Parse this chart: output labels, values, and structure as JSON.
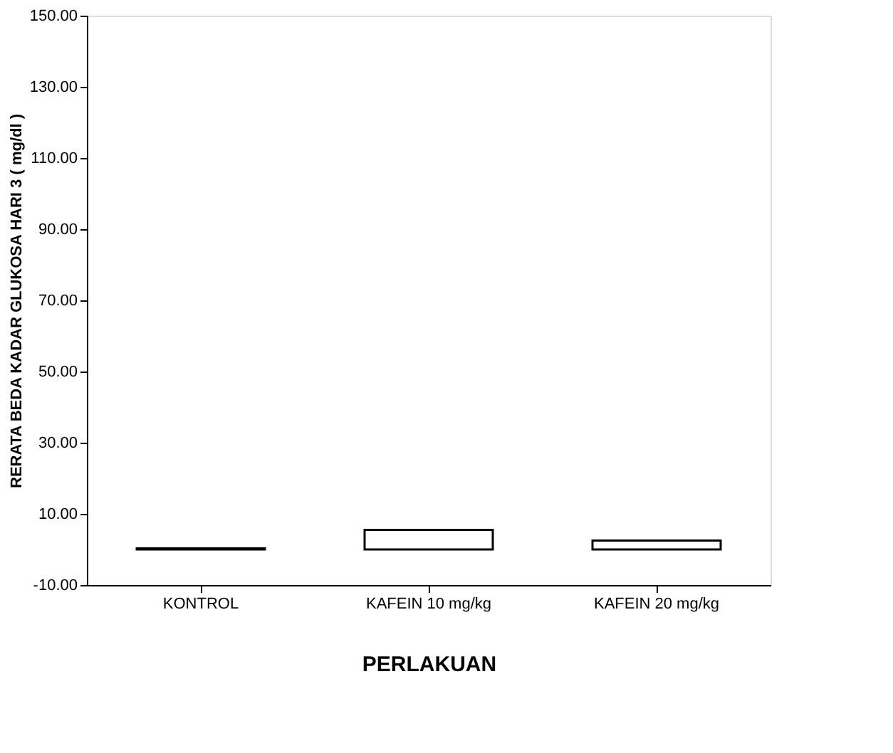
{
  "chart_data": {
    "type": "bar",
    "xlabel": "PERLAKUAN",
    "ylabel": "RERATA BEDA  KADAR GLUKOSA HARI 3 ( mg/dl )",
    "categories": [
      "KONTROL",
      "KAFEIN 10 mg/kg",
      "KAFEIN 20 mg/kg"
    ],
    "values": [
      0.3,
      5.5,
      2.5
    ],
    "color": "#ffffff",
    "ylim": [
      -10,
      150
    ],
    "yticks": [
      {
        "value": -10,
        "label": "-10.00"
      },
      {
        "value": 10,
        "label": "10.00"
      },
      {
        "value": 30,
        "label": "30.00"
      },
      {
        "value": 50,
        "label": "50.00"
      },
      {
        "value": 70,
        "label": "70.00"
      },
      {
        "value": 90,
        "label": "90.00"
      },
      {
        "value": 110,
        "label": "110.00"
      },
      {
        "value": 130,
        "label": "130.00"
      },
      {
        "value": 150,
        "label": "150.00"
      }
    ],
    "grid": false
  }
}
